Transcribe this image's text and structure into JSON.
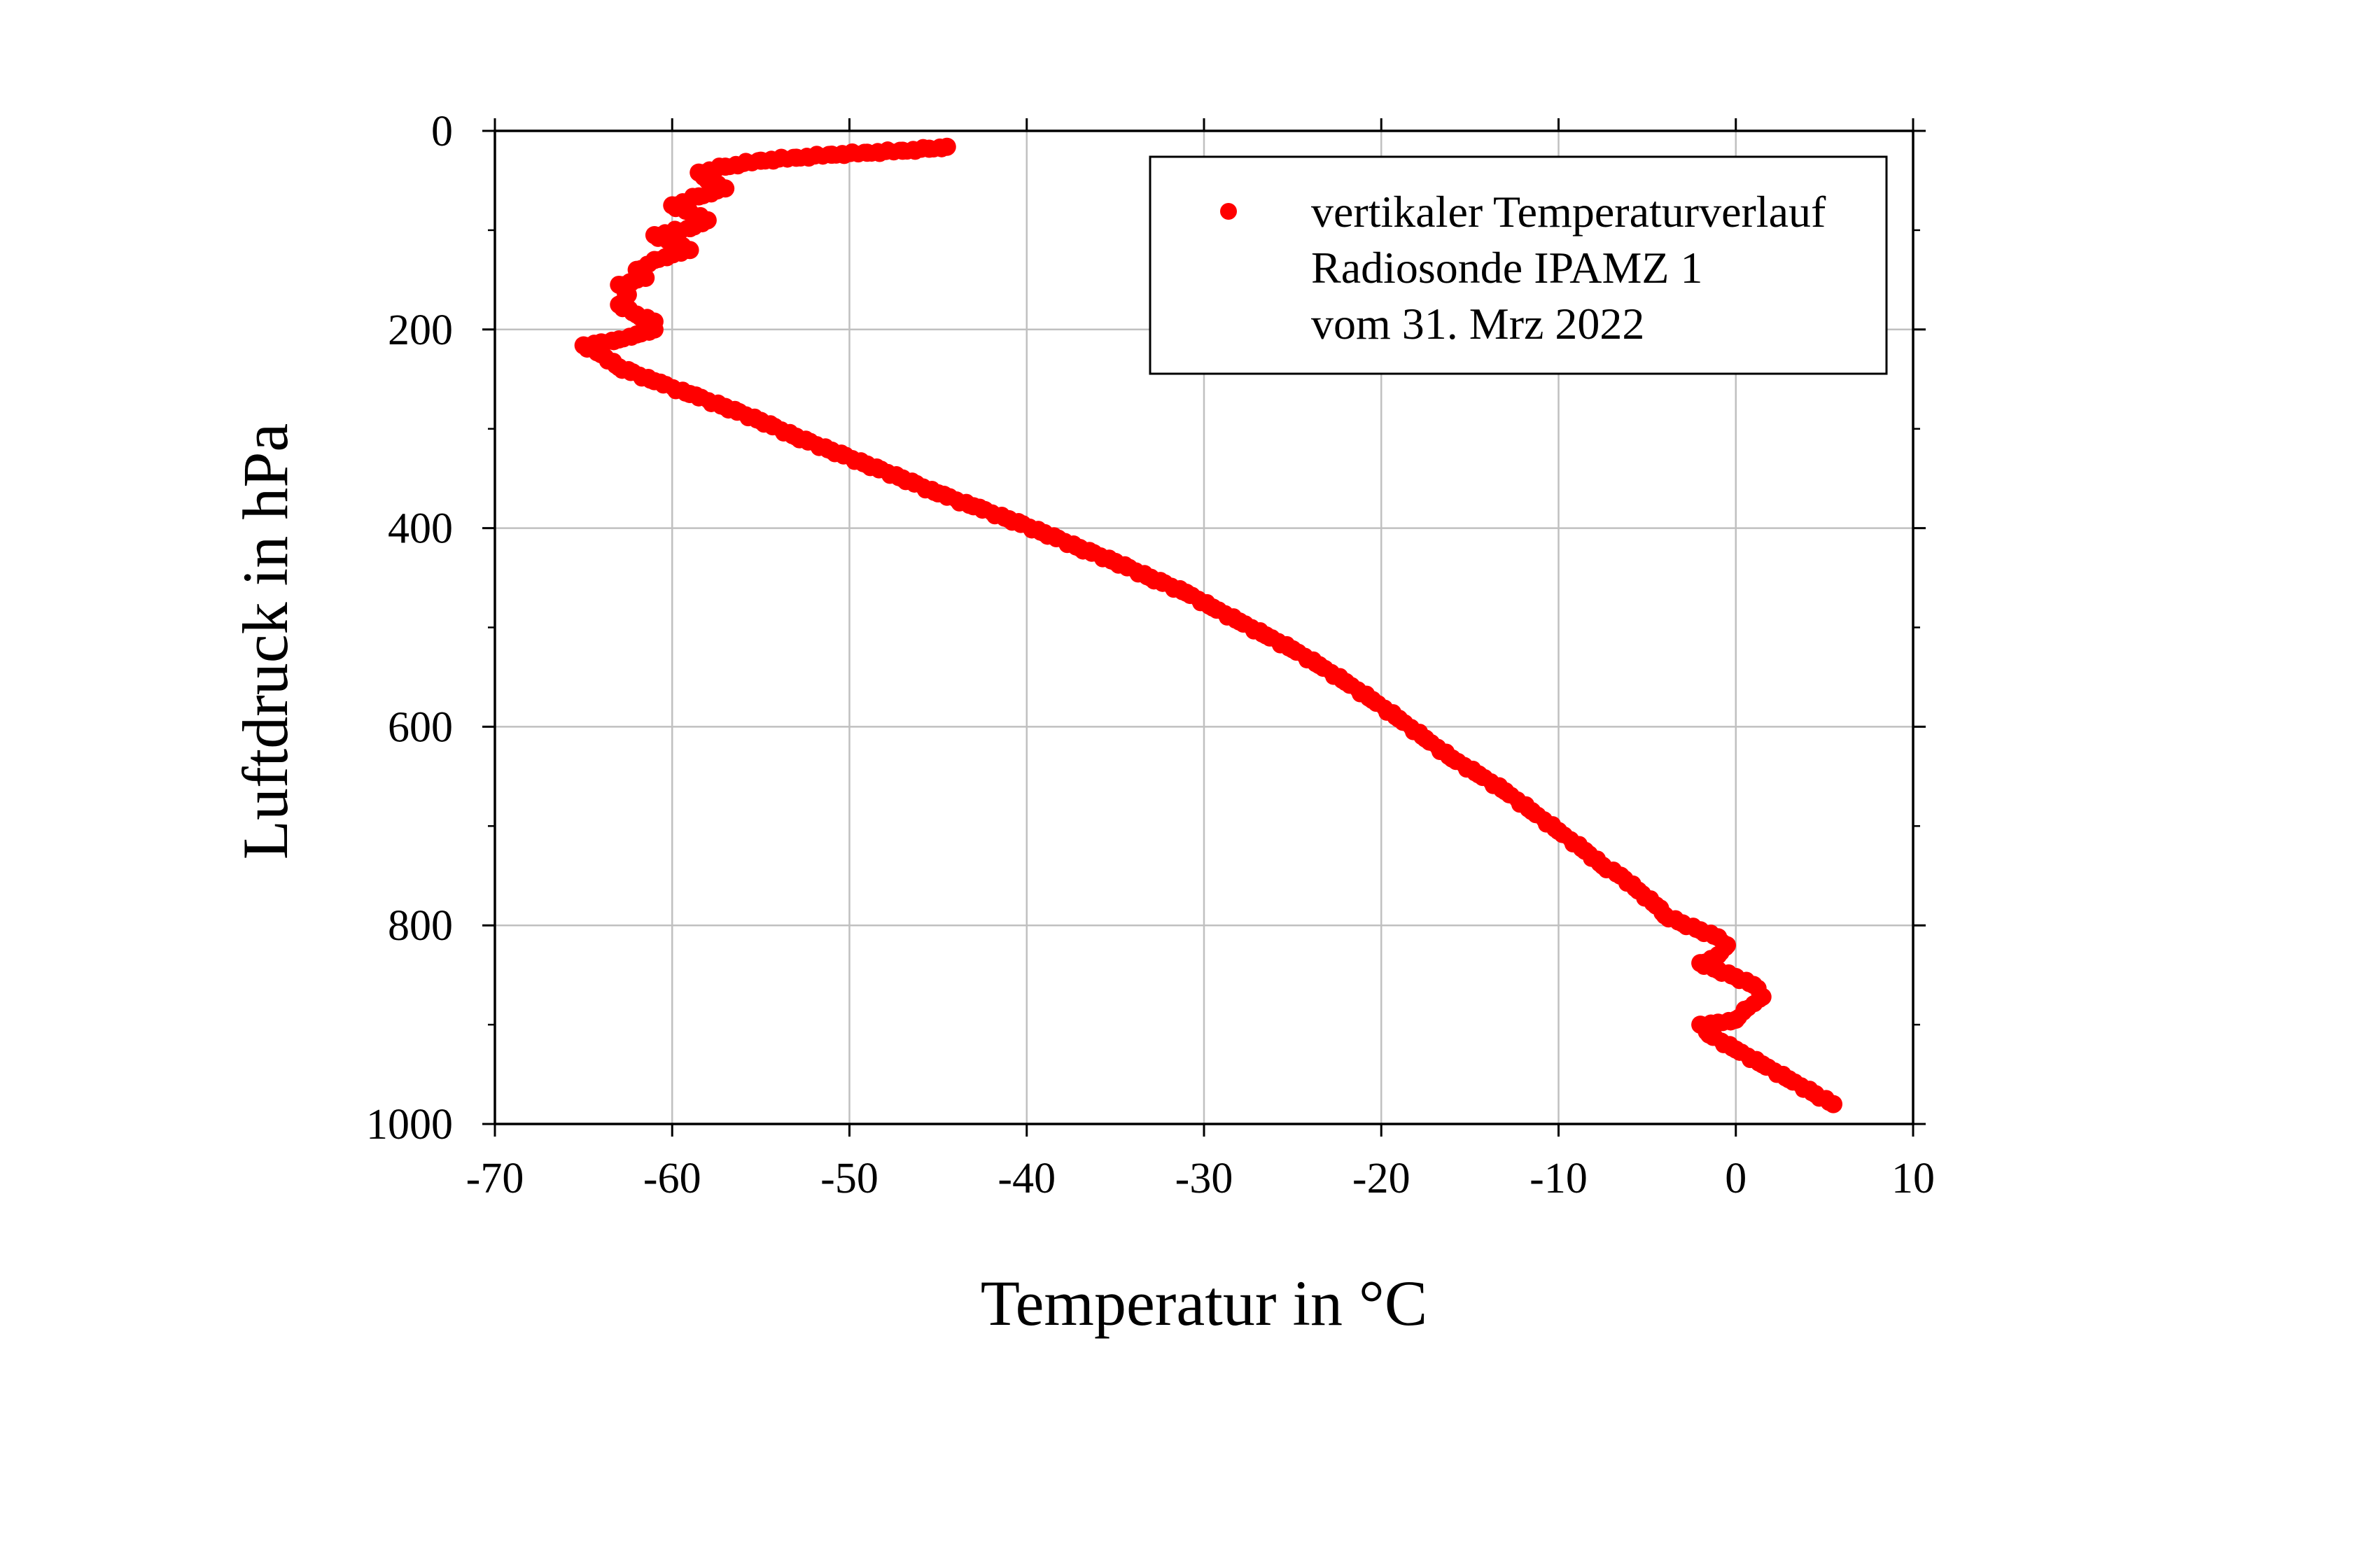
{
  "chart_data": {
    "type": "scatter",
    "xlabel": "Temperatur in °C",
    "ylabel": "Luftdruck in hPa",
    "xlim": [
      -70,
      10
    ],
    "ylim": [
      0,
      1000
    ],
    "y_inverted": true,
    "x_ticks": [
      "-70",
      "-60",
      "-50",
      "-40",
      "-30",
      "-20",
      "-10",
      "0",
      "10"
    ],
    "y_ticks": [
      "0",
      "200",
      "400",
      "600",
      "800",
      "1000"
    ],
    "grid": true,
    "legend_position": "top-right",
    "legend_lines": [
      "vertikaler Temperaturverlauf",
      "Radiosonde IPAMZ 1",
      "vom 31. Mrz 2022"
    ],
    "marker_color": "#ff0000",
    "series": [
      {
        "name": "vertikaler Temperaturverlauf",
        "points": [
          [
            5.5,
            980
          ],
          [
            4.5,
            970
          ],
          [
            3,
            955
          ],
          [
            1.5,
            940
          ],
          [
            0,
            925
          ],
          [
            -1.5,
            910
          ],
          [
            -2,
            900
          ],
          [
            -1,
            898
          ],
          [
            0,
            895
          ],
          [
            0.5,
            885
          ],
          [
            1.5,
            872
          ],
          [
            1,
            860
          ],
          [
            0,
            852
          ],
          [
            -1,
            845
          ],
          [
            -2,
            838
          ],
          [
            -1,
            830
          ],
          [
            -0.5,
            820
          ],
          [
            -1,
            812
          ],
          [
            -2,
            805
          ],
          [
            -3,
            798
          ],
          [
            -4,
            790
          ],
          [
            -4.5,
            780
          ],
          [
            -5.5,
            765
          ],
          [
            -6.5,
            750
          ],
          [
            -7.5,
            740
          ],
          [
            -8.5,
            725
          ],
          [
            -10,
            705
          ],
          [
            -11.5,
            685
          ],
          [
            -13,
            665
          ],
          [
            -14.5,
            648
          ],
          [
            -16,
            632
          ],
          [
            -17.5,
            612
          ],
          [
            -19,
            592
          ],
          [
            -20.5,
            573
          ],
          [
            -22,
            555
          ],
          [
            -23.5,
            538
          ],
          [
            -25,
            522
          ],
          [
            -26.5,
            508
          ],
          [
            -28,
            494
          ],
          [
            -29.5,
            480
          ],
          [
            -31,
            465
          ],
          [
            -33,
            450
          ],
          [
            -35,
            434
          ],
          [
            -37,
            420
          ],
          [
            -39,
            405
          ],
          [
            -41,
            391
          ],
          [
            -43,
            378
          ],
          [
            -45,
            365
          ],
          [
            -47,
            350
          ],
          [
            -49,
            336
          ],
          [
            -51,
            322
          ],
          [
            -53,
            308
          ],
          [
            -55,
            292
          ],
          [
            -57,
            278
          ],
          [
            -59,
            265
          ],
          [
            -61,
            252
          ],
          [
            -63,
            238
          ],
          [
            -64,
            225
          ],
          [
            -65,
            216
          ],
          [
            -64,
            213
          ],
          [
            -63,
            210
          ],
          [
            -62,
            205
          ],
          [
            -61,
            200
          ],
          [
            -61,
            192
          ],
          [
            -62,
            185
          ],
          [
            -63,
            175
          ],
          [
            -62.5,
            165
          ],
          [
            -63,
            155
          ],
          [
            -61.5,
            148
          ],
          [
            -62,
            140
          ],
          [
            -61,
            130
          ],
          [
            -59,
            120
          ],
          [
            -60,
            112
          ],
          [
            -61,
            105
          ],
          [
            -59,
            98
          ],
          [
            -58,
            90
          ],
          [
            -59,
            82
          ],
          [
            -60,
            75
          ],
          [
            -58.5,
            66
          ],
          [
            -57,
            58
          ],
          [
            -58,
            50
          ],
          [
            -58.5,
            42
          ],
          [
            -57,
            36
          ],
          [
            -55,
            30
          ],
          [
            -53,
            27
          ],
          [
            -51,
            24
          ],
          [
            -49,
            22
          ],
          [
            -47,
            20
          ],
          [
            -45.5,
            18
          ],
          [
            -44.5,
            16
          ]
        ]
      }
    ]
  }
}
